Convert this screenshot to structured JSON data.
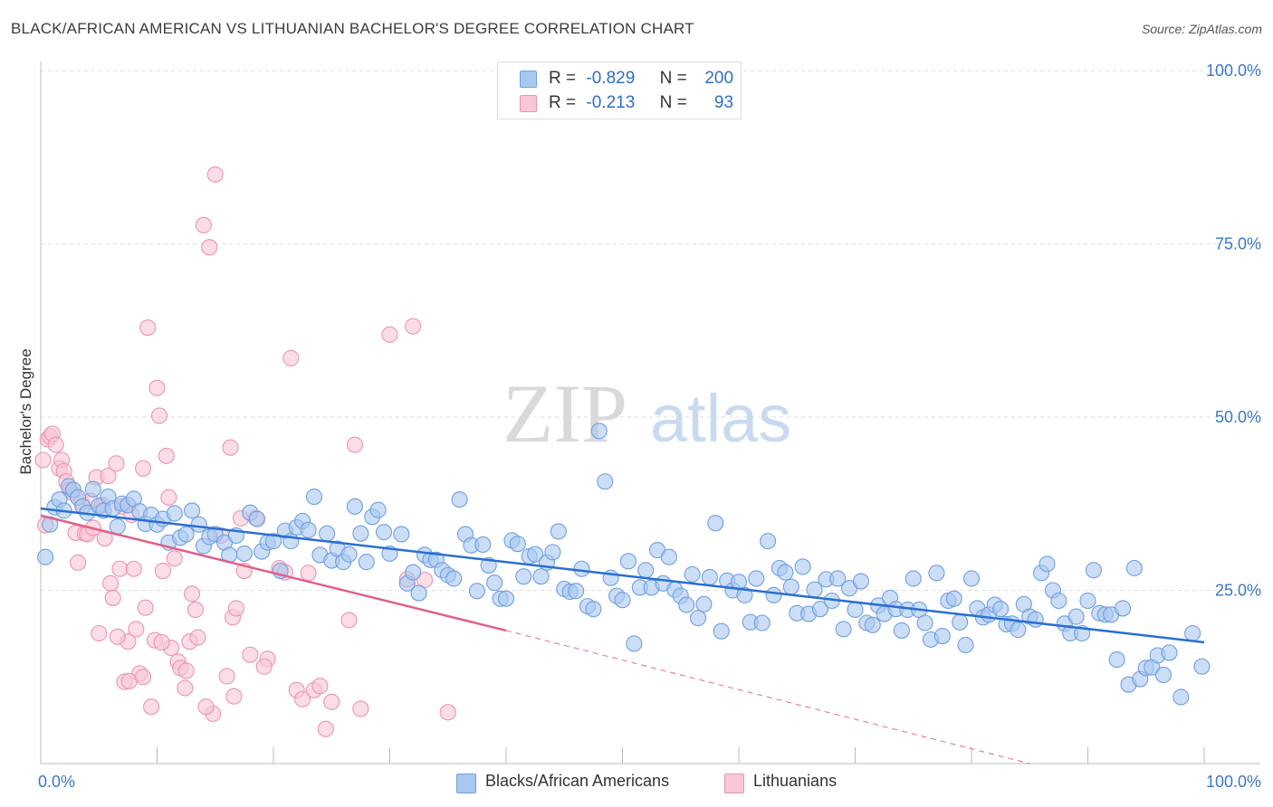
{
  "header": {
    "title": "BLACK/AFRICAN AMERICAN VS LITHUANIAN BACHELOR'S DEGREE CORRELATION CHART",
    "source": "Source: ZipAtlas.com"
  },
  "legend": {
    "r_label": "R =",
    "n_label": "N =",
    "rows": [
      {
        "r": "-0.829",
        "n": "200",
        "color": "#a9c8f0",
        "border": "#6f9fe0"
      },
      {
        "r": "-0.213",
        "n": "93",
        "color": "#f8c6d5",
        "border": "#ec93b0"
      }
    ]
  },
  "watermark": {
    "zip": "ZIP",
    "atlas": "atlas"
  },
  "chart_data": {
    "type": "scatter",
    "title": "BLACK/AFRICAN AMERICAN VS LITHUANIAN BACHELOR'S DEGREE CORRELATION CHART",
    "xlabel": "",
    "ylabel": "Bachelor's Degree",
    "xlim": [
      0,
      100
    ],
    "ylim": [
      0,
      100
    ],
    "x_tick_labels": [
      "0.0%",
      "100.0%"
    ],
    "y_tick_labels": [
      "25.0%",
      "50.0%",
      "75.0%",
      "100.0%"
    ],
    "y_ticks": [
      25,
      50,
      75,
      100
    ],
    "grid": true,
    "legend_position": "bottom-center",
    "series": [
      {
        "name": "Blacks/African Americans",
        "color": "#6f9fe0",
        "fill": "#a9c8f0",
        "trend": {
          "x": [
            0,
            100
          ],
          "y": [
            36.8,
            17.5
          ],
          "color": "#2a6fd0"
        },
        "points": [
          [
            0.4,
            29.8
          ],
          [
            0.8,
            34.5
          ],
          [
            1.2,
            37
          ],
          [
            1.6,
            38.1
          ],
          [
            2,
            36.5
          ],
          [
            2.4,
            40
          ],
          [
            2.8,
            39.5
          ],
          [
            3.2,
            38.4
          ],
          [
            3.6,
            37.1
          ],
          [
            4.0,
            36.2
          ],
          [
            4.5,
            39.6
          ],
          [
            5,
            37.2
          ],
          [
            5.4,
            36.5
          ],
          [
            5.8,
            38.5
          ],
          [
            6.2,
            36.8
          ],
          [
            6.6,
            34.2
          ],
          [
            7,
            37.5
          ],
          [
            7.5,
            37.3
          ],
          [
            8,
            38.2
          ],
          [
            8.5,
            36.4
          ],
          [
            9,
            34.6
          ],
          [
            9.5,
            35.9
          ],
          [
            10,
            34.5
          ],
          [
            10.5,
            35.3
          ],
          [
            11,
            31.9
          ],
          [
            11.5,
            36.1
          ],
          [
            12,
            32.6
          ],
          [
            12.5,
            33.1
          ],
          [
            13,
            36.5
          ],
          [
            13.6,
            34.5
          ],
          [
            14,
            31.4
          ],
          [
            14.5,
            32.7
          ],
          [
            15,
            33.1
          ],
          [
            15.8,
            31.9
          ],
          [
            16.2,
            30.1
          ],
          [
            16.8,
            32.9
          ],
          [
            17.5,
            30.3
          ],
          [
            18,
            36.2
          ],
          [
            18.6,
            35.3
          ],
          [
            19,
            30.6
          ],
          [
            19.5,
            31.9
          ],
          [
            20,
            32.1
          ],
          [
            20.6,
            27.8
          ],
          [
            21,
            33.6
          ],
          [
            21.5,
            32.1
          ],
          [
            22,
            34.1
          ],
          [
            22.5,
            35
          ],
          [
            23,
            33.7
          ],
          [
            23.5,
            38.5
          ],
          [
            24,
            30.1
          ],
          [
            24.6,
            33.2
          ],
          [
            25,
            29.3
          ],
          [
            25.5,
            31
          ],
          [
            26,
            29.1
          ],
          [
            26.5,
            30.2
          ],
          [
            27,
            37.1
          ],
          [
            27.5,
            33.2
          ],
          [
            28,
            29.1
          ],
          [
            28.5,
            35.6
          ],
          [
            29,
            36.6
          ],
          [
            29.5,
            33.4
          ],
          [
            30,
            30.3
          ],
          [
            31,
            33.1
          ],
          [
            31.5,
            26
          ],
          [
            32,
            27.6
          ],
          [
            32.5,
            24.6
          ],
          [
            33,
            30.1
          ],
          [
            33.5,
            29.4
          ],
          [
            34,
            29.4
          ],
          [
            34.5,
            27.9
          ],
          [
            35,
            27.2
          ],
          [
            35.5,
            26.7
          ],
          [
            36,
            38.1
          ],
          [
            36.5,
            33.1
          ],
          [
            37,
            31.5
          ],
          [
            37.5,
            24.9
          ],
          [
            38,
            31.6
          ],
          [
            38.5,
            28.6
          ],
          [
            39,
            26.1
          ],
          [
            39.5,
            23.8
          ],
          [
            40,
            23.8
          ],
          [
            40.5,
            32.2
          ],
          [
            41,
            31.7
          ],
          [
            41.5,
            27
          ],
          [
            42,
            29.9
          ],
          [
            42.5,
            30.2
          ],
          [
            43,
            27
          ],
          [
            43.5,
            29
          ],
          [
            44,
            30.5
          ],
          [
            44.5,
            33.5
          ],
          [
            45,
            25.2
          ],
          [
            45.5,
            24.8
          ],
          [
            46,
            24.9
          ],
          [
            46.5,
            28.1
          ],
          [
            47,
            22.7
          ],
          [
            47.5,
            22.3
          ],
          [
            48,
            48
          ],
          [
            48.5,
            40.7
          ],
          [
            49,
            26.8
          ],
          [
            49.5,
            24.2
          ],
          [
            50,
            23.6
          ],
          [
            50.5,
            29.2
          ],
          [
            51,
            17.3
          ],
          [
            51.5,
            25.4
          ],
          [
            52,
            27.9
          ],
          [
            52.5,
            25.4
          ],
          [
            53,
            30.8
          ],
          [
            53.5,
            26
          ],
          [
            54,
            29.8
          ],
          [
            54.5,
            25.1
          ],
          [
            55,
            24.2
          ],
          [
            55.5,
            22.9
          ],
          [
            56,
            27.3
          ],
          [
            56.5,
            21
          ],
          [
            57,
            23
          ],
          [
            57.5,
            26.9
          ],
          [
            58,
            34.7
          ],
          [
            58.5,
            19.1
          ],
          [
            59,
            26.4
          ],
          [
            59.5,
            25
          ],
          [
            60,
            26.2
          ],
          [
            60.5,
            24.3
          ],
          [
            61,
            20.4
          ],
          [
            61.5,
            26.7
          ],
          [
            62,
            20.3
          ],
          [
            62.5,
            32.1
          ],
          [
            63,
            24.3
          ],
          [
            63.5,
            28.2
          ],
          [
            64,
            27.6
          ],
          [
            64.5,
            25.5
          ],
          [
            65,
            21.7
          ],
          [
            65.5,
            28.4
          ],
          [
            66,
            21.6
          ],
          [
            66.5,
            25.1
          ],
          [
            67,
            22.3
          ],
          [
            67.5,
            26.6
          ],
          [
            68,
            23.5
          ],
          [
            68.5,
            26.7
          ],
          [
            69,
            19.4
          ],
          [
            69.5,
            25.3
          ],
          [
            70,
            22.2
          ],
          [
            70.5,
            26.3
          ],
          [
            71,
            20.3
          ],
          [
            71.5,
            20
          ],
          [
            72,
            22.8
          ],
          [
            72.5,
            21.6
          ],
          [
            73,
            23.9
          ],
          [
            73.5,
            22.3
          ],
          [
            74,
            19.2
          ],
          [
            74.5,
            22.2
          ],
          [
            75,
            26.7
          ],
          [
            75.5,
            22.2
          ],
          [
            76,
            20.3
          ],
          [
            76.5,
            17.9
          ],
          [
            77,
            27.5
          ],
          [
            77.5,
            18.4
          ],
          [
            78,
            23.5
          ],
          [
            78.5,
            23.8
          ],
          [
            79,
            20.4
          ],
          [
            79.5,
            17.1
          ],
          [
            80,
            26.7
          ],
          [
            80.5,
            22.4
          ],
          [
            81,
            21.1
          ],
          [
            81.5,
            21.5
          ],
          [
            82,
            22.9
          ],
          [
            82.5,
            22.3
          ],
          [
            83,
            20.1
          ],
          [
            83.5,
            20.2
          ],
          [
            84,
            19.3
          ],
          [
            84.5,
            23
          ],
          [
            85,
            21.2
          ],
          [
            85.5,
            20.8
          ],
          [
            86,
            27.5
          ],
          [
            86.5,
            28.8
          ],
          [
            87,
            25
          ],
          [
            87.5,
            23.5
          ],
          [
            88,
            20.2
          ],
          [
            88.5,
            18.8
          ],
          [
            89,
            21.2
          ],
          [
            89.5,
            18.8
          ],
          [
            90,
            23.5
          ],
          [
            90.5,
            27.9
          ],
          [
            91,
            21.7
          ],
          [
            91.5,
            21.5
          ],
          [
            92,
            21.5
          ],
          [
            92.5,
            15
          ],
          [
            93,
            22.4
          ],
          [
            93.5,
            11.4
          ],
          [
            94,
            28.2
          ],
          [
            94.5,
            12.2
          ],
          [
            95,
            13.8
          ],
          [
            95.5,
            13.9
          ],
          [
            96,
            15.6
          ],
          [
            96.5,
            12.8
          ],
          [
            97,
            16
          ],
          [
            98,
            9.6
          ],
          [
            99,
            18.8
          ],
          [
            99.8,
            14
          ]
        ]
      },
      {
        "name": "Lithuanians",
        "color": "#ec93b0",
        "fill": "#f8c6d5",
        "trend": {
          "x": [
            0,
            40
          ],
          "y": [
            35.8,
            19.2
          ],
          "color": "#e0608a"
        },
        "trend_dashed": {
          "x": [
            40,
            85
          ],
          "y": [
            19.2,
            0
          ]
        },
        "points": [
          [
            0.2,
            43.8
          ],
          [
            0.4,
            34.4
          ],
          [
            0.6,
            46.8
          ],
          [
            0.8,
            47.2
          ],
          [
            1,
            47.6
          ],
          [
            1.3,
            46
          ],
          [
            1.6,
            42.6
          ],
          [
            1.8,
            43.8
          ],
          [
            2,
            42.2
          ],
          [
            2.2,
            40.7
          ],
          [
            2.5,
            39.5
          ],
          [
            2.7,
            39.1
          ],
          [
            3,
            33.3
          ],
          [
            3.2,
            29
          ],
          [
            3.5,
            37.7
          ],
          [
            3.8,
            33.2
          ],
          [
            4,
            33.1
          ],
          [
            4.3,
            37.9
          ],
          [
            4.5,
            34
          ],
          [
            4.8,
            41.3
          ],
          [
            5,
            18.8
          ],
          [
            5.3,
            37.3
          ],
          [
            5.5,
            32.5
          ],
          [
            5.8,
            41.5
          ],
          [
            6,
            26
          ],
          [
            6.2,
            23.9
          ],
          [
            6.5,
            43.3
          ],
          [
            6.8,
            28.1
          ],
          [
            7,
            37.1
          ],
          [
            7.2,
            11.8
          ],
          [
            7.5,
            17.6
          ],
          [
            7.8,
            35.9
          ],
          [
            8,
            28.1
          ],
          [
            8.2,
            19.4
          ],
          [
            8.5,
            13
          ],
          [
            8.8,
            42.6
          ],
          [
            9,
            22.5
          ],
          [
            9.2,
            62.9
          ],
          [
            9.5,
            8.2
          ],
          [
            9.8,
            17.8
          ],
          [
            10,
            54.2
          ],
          [
            10.2,
            50.2
          ],
          [
            10.5,
            27.8
          ],
          [
            10.8,
            44.4
          ],
          [
            11,
            38.4
          ],
          [
            11.2,
            16.7
          ],
          [
            11.5,
            29.6
          ],
          [
            11.8,
            14.7
          ],
          [
            12,
            13.8
          ],
          [
            12.5,
            13.4
          ],
          [
            12.8,
            17.6
          ],
          [
            13,
            24.5
          ],
          [
            13.3,
            22.2
          ],
          [
            13.5,
            18.2
          ],
          [
            14,
            77.7
          ],
          [
            14.5,
            74.5
          ],
          [
            14.8,
            7.2
          ],
          [
            15,
            85
          ],
          [
            15.5,
            32.9
          ],
          [
            16,
            12.6
          ],
          [
            16.3,
            45.6
          ],
          [
            16.5,
            21.1
          ],
          [
            16.8,
            22.4
          ],
          [
            17.2,
            35.4
          ],
          [
            17.5,
            27.8
          ],
          [
            18,
            15.7
          ],
          [
            18.5,
            35.4
          ],
          [
            19.5,
            15.1
          ],
          [
            20.5,
            28.2
          ],
          [
            21,
            27.6
          ],
          [
            21.5,
            58.5
          ],
          [
            22,
            10.6
          ],
          [
            22.5,
            9.3
          ],
          [
            23,
            27.5
          ],
          [
            23.5,
            10.6
          ],
          [
            24,
            11.2
          ],
          [
            24.5,
            5
          ],
          [
            25,
            8.9
          ],
          [
            26.5,
            20.7
          ],
          [
            27,
            46
          ],
          [
            27.5,
            7.9
          ],
          [
            30,
            61.9
          ],
          [
            31.5,
            26.6
          ],
          [
            32,
            63.1
          ],
          [
            33,
            26.5
          ],
          [
            35,
            7.4
          ],
          [
            6.6,
            18.3
          ],
          [
            7.6,
            11.9
          ],
          [
            8.8,
            12.5
          ],
          [
            10.4,
            17.5
          ],
          [
            12.4,
            10.9
          ],
          [
            14.2,
            8.2
          ],
          [
            16.6,
            9.7
          ],
          [
            19.2,
            14
          ]
        ]
      }
    ]
  },
  "bottom_legend": [
    {
      "label": "Blacks/African Americans"
    },
    {
      "label": "Lithuanians"
    }
  ]
}
